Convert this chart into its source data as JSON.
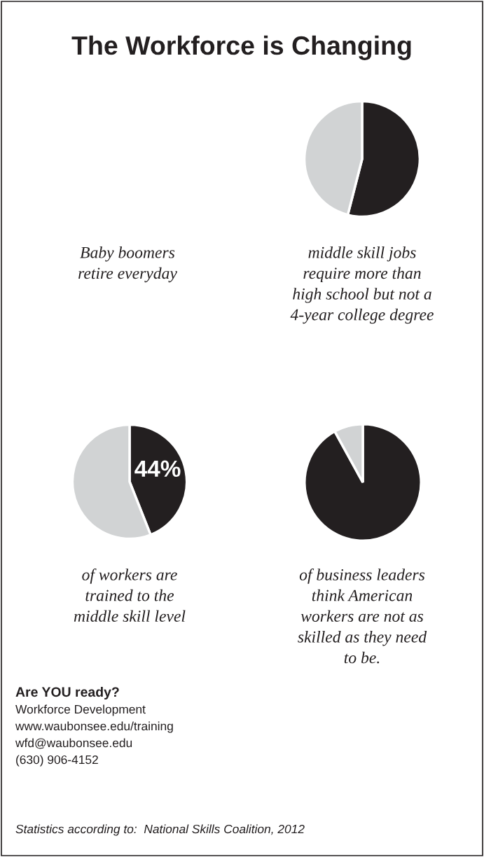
{
  "chart_data": [
    {
      "type": "other",
      "title": "The Workforce is Changing"
    },
    {
      "type": "other",
      "annotations": [
        "Baby boomers\nretire everyday"
      ]
    },
    {
      "type": "pie",
      "categories": [
        null,
        null
      ],
      "values": [
        54,
        46
      ],
      "colors": [
        "#231f20",
        "#d1d3d4"
      ],
      "annotations": [
        "middle skill jobs\nrequire more than\nhigh school but not a\n4-year college degree"
      ]
    },
    {
      "type": "pie",
      "categories": [
        null,
        null
      ],
      "values": [
        44,
        56
      ],
      "colors": [
        "#231f20",
        "#d1d3d4"
      ],
      "value_labels": [
        "44%",
        null
      ],
      "annotations": [
        "of workers are\ntrained to the\nmiddle skill level"
      ]
    },
    {
      "type": "pie",
      "categories": [
        null,
        null
      ],
      "values": [
        92,
        8
      ],
      "colors": [
        "#231f20",
        "#d1d3d4"
      ],
      "annotations": [
        "of business leaders\nthink American\nworkers are not as\nskilled as they need\nto be."
      ]
    },
    {
      "type": "other",
      "title": "Are YOU ready?",
      "annotations": [
        "Workforce Development",
        "www.waubonsee.edu/training",
        "wfd@waubonsee.edu",
        "(630) 906-4152",
        "Statistics according to:  National Skills Coalition, 2012"
      ]
    }
  ]
}
